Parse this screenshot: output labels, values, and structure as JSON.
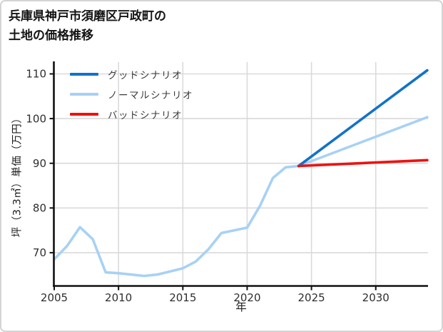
{
  "title": {
    "line1": "兵庫県神戸市須磨区戸政町の",
    "line2": "土地の価格推移"
  },
  "chart_data": {
    "type": "line",
    "title": "兵庫県神戸市須磨区戸政町の土地の価格推移",
    "xlabel": "年",
    "ylabel": "坪（3.3㎡）単価（万円）",
    "xlim": [
      2005,
      2033.9
    ],
    "ylim": [
      62.6,
      112.7
    ],
    "xticks": [
      2005,
      2010,
      2015,
      2020,
      2025,
      2030
    ],
    "yticks": [
      70,
      80,
      90,
      100,
      110
    ],
    "grid": true,
    "legend_position": "upper-left",
    "axis_color": "#111111",
    "grid_color": "#dadada",
    "tick_label_color": "#2e2e2e",
    "series": [
      {
        "name": "グッドシナリオ",
        "color": "#1273c8",
        "z": 2,
        "x": [
          2024,
          2034
        ],
        "values": [
          89.4,
          110.8
        ]
      },
      {
        "name": "ノーマルシナリオ",
        "color": "#a8d1f5",
        "z": 1,
        "x": [
          2005,
          2006,
          2007,
          2008,
          2009,
          2010,
          2011,
          2012,
          2013,
          2014,
          2015,
          2016,
          2017,
          2018,
          2019,
          2020,
          2021,
          2022,
          2023,
          2024,
          2034
        ],
        "values": [
          68.5,
          71.5,
          75.7,
          73.0,
          65.6,
          65.4,
          65.1,
          64.8,
          65.1,
          65.8,
          66.5,
          68.0,
          70.8,
          74.4,
          75.0,
          75.6,
          80.5,
          86.7,
          89.1,
          89.4,
          100.3
        ]
      },
      {
        "name": "バッドシナリオ",
        "color": "#ee1111",
        "z": 3,
        "x": [
          2024,
          2034
        ],
        "values": [
          89.4,
          90.7
        ]
      }
    ]
  }
}
